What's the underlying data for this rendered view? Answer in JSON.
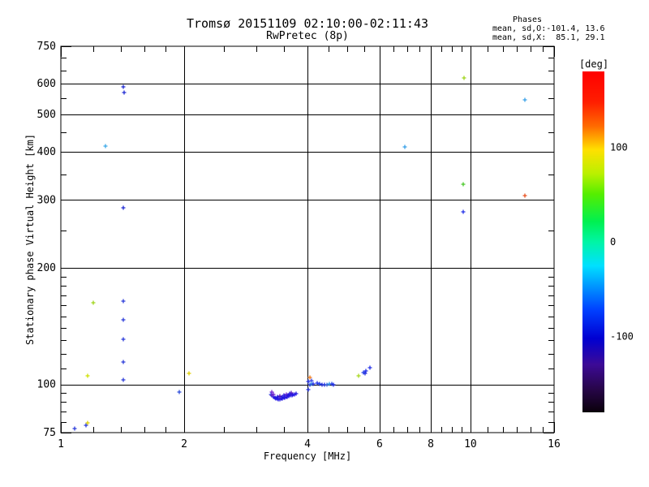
{
  "header": {
    "title_line1": "Tromsø 20151109 02:10:00-02:11:43",
    "title_line2": "RwPretec (8p)",
    "phases_heading": "Phases",
    "phases_line_o": "mean, sd,O:-101.4, 13.6",
    "phases_line_x": "mean, sd,X:  85.1, 29.1"
  },
  "chart_data": {
    "type": "scatter",
    "title": "Tromsø 20151109 02:10:00-02:11:43",
    "subtitle": "RwPretec (8p)",
    "xlabel": "Frequency [MHz]",
    "ylabel": "Stationary phase Virtual Height [km]",
    "x_scale": "log",
    "y_scale": "log",
    "xlim": [
      1,
      16
    ],
    "ylim": [
      75,
      750
    ],
    "x_major_ticks": [
      1,
      2,
      4,
      6,
      8,
      10,
      16
    ],
    "x_minor_ticks": [
      1.2,
      1.4,
      1.6,
      1.8,
      2.5,
      3,
      3.5,
      4.5,
      5,
      5.5,
      6.5,
      7,
      7.5,
      8.5,
      9,
      9.5,
      11,
      12,
      13,
      14,
      15
    ],
    "y_major_ticks": [
      750,
      600,
      500,
      400,
      300,
      200,
      100,
      75
    ],
    "y_minor_ticks": [
      700,
      650,
      550,
      450,
      350,
      250,
      190,
      180,
      170,
      160,
      150,
      140,
      130,
      120,
      110,
      95,
      90,
      85,
      80
    ],
    "x_gridlines": [
      2,
      4,
      6,
      8,
      10
    ],
    "y_gridlines": [
      600,
      500,
      400,
      300,
      200,
      100
    ],
    "grid": true,
    "marker": "plus",
    "points_format": [
      "frequency_MHz",
      "virtual_height_km",
      "phase_color"
    ],
    "points": [
      [
        1.08,
        77,
        "#2a3ad9"
      ],
      [
        1.15,
        78.5,
        "#2a3ad9"
      ],
      [
        1.165,
        79.5,
        "#e0cf00"
      ],
      [
        1.16,
        105,
        "#cfe000"
      ],
      [
        1.2,
        163,
        "#9fd41a"
      ],
      [
        1.285,
        413,
        "#3aa8e8"
      ],
      [
        1.42,
        588,
        "#1f2ad2"
      ],
      [
        1.425,
        569,
        "#1f2ad2"
      ],
      [
        1.42,
        287,
        "#1f2ad2"
      ],
      [
        1.42,
        164,
        "#2a3ad9"
      ],
      [
        1.42,
        147,
        "#2a3ad9"
      ],
      [
        1.42,
        131,
        "#2a3ad9"
      ],
      [
        1.42,
        114.5,
        "#2a3ad9"
      ],
      [
        1.42,
        102.5,
        "#2a3ad9"
      ],
      [
        1.95,
        95.5,
        "#2a4ad9"
      ],
      [
        2.06,
        107,
        "#e0cf00"
      ],
      [
        3.26,
        94.2,
        "#3a57e8"
      ],
      [
        3.28,
        93.6,
        "#5a1fc0"
      ],
      [
        3.305,
        93.0,
        "#2316dd"
      ],
      [
        3.33,
        92.5,
        "#2316dd"
      ],
      [
        3.35,
        92.1,
        "#2316e8"
      ],
      [
        3.375,
        91.8,
        "#2316dd"
      ],
      [
        3.4,
        91.6,
        "#2316e8"
      ],
      [
        3.425,
        91.5,
        "#2316dd"
      ],
      [
        3.45,
        91.7,
        "#2316e8"
      ],
      [
        3.475,
        91.9,
        "#2316dd"
      ],
      [
        3.5,
        92.2,
        "#3322ee"
      ],
      [
        3.525,
        92.4,
        "#2316dd"
      ],
      [
        3.55,
        92.7,
        "#2316e8"
      ],
      [
        3.575,
        92.9,
        "#2316dd"
      ],
      [
        3.6,
        93.2,
        "#2316e8"
      ],
      [
        3.63,
        93.5,
        "#2316dd"
      ],
      [
        3.66,
        93.7,
        "#2316e8"
      ],
      [
        3.69,
        94.0,
        "#2316dd"
      ],
      [
        3.72,
        94.3,
        "#2316e8"
      ],
      [
        3.755,
        94.6,
        "#2316dd"
      ],
      [
        3.31,
        94.3,
        "#6a1fd0"
      ],
      [
        3.43,
        93.3,
        "#5515b8"
      ],
      [
        3.56,
        94.2,
        "#6a22cc"
      ],
      [
        3.655,
        95.0,
        "#5a1fc0"
      ],
      [
        3.27,
        95.6,
        "#7a2ad2"
      ],
      [
        3.5,
        93.6,
        "#2e1fe0"
      ],
      [
        3.62,
        94.6,
        "#2e1fe0"
      ],
      [
        3.38,
        92.8,
        "#2316dd"
      ],
      [
        3.47,
        92.8,
        "#2316dd"
      ],
      [
        3.58,
        93.8,
        "#2316dd"
      ],
      [
        4.05,
        104.3,
        "#f07818"
      ],
      [
        4.02,
        101.5,
        "#2330e8"
      ],
      [
        4.05,
        99.6,
        "#2330dd"
      ],
      [
        4.01,
        96.8,
        "#2330dd"
      ],
      [
        4.085,
        102.0,
        "#3344e8"
      ],
      [
        4.1,
        100.4,
        "#37a0e8"
      ],
      [
        4.13,
        100.1,
        "#2330e8"
      ],
      [
        4.22,
        100.8,
        "#2330e8"
      ],
      [
        4.28,
        100.2,
        "#2340e8"
      ],
      [
        4.34,
        99.8,
        "#2330dd"
      ],
      [
        4.4,
        99.6,
        "#2330e8"
      ],
      [
        4.46,
        99.9,
        "#3a6ae8"
      ],
      [
        4.52,
        100.3,
        "#37a0e8"
      ],
      [
        4.58,
        100.4,
        "#2340e8"
      ],
      [
        4.63,
        100.0,
        "#2330e8"
      ],
      [
        5.33,
        105,
        "#a8d81e"
      ],
      [
        5.49,
        107.3,
        "#2340e8"
      ],
      [
        5.54,
        106.8,
        "#2330dd"
      ],
      [
        5.56,
        108.2,
        "#2330e8"
      ],
      [
        5.68,
        110.5,
        "#2330e8"
      ],
      [
        6.9,
        412,
        "#37a0e8"
      ],
      [
        9.66,
        622,
        "#9fd41a"
      ],
      [
        9.61,
        330,
        "#49c828"
      ],
      [
        9.61,
        280,
        "#2330e8"
      ],
      [
        13.55,
        545,
        "#37a0e8"
      ],
      [
        13.6,
        308,
        "#e8501e"
      ]
    ],
    "colorbar": {
      "label": "[deg]",
      "range_deg": [
        -180,
        180
      ],
      "ticks": [
        {
          "value": 100,
          "label": "100"
        },
        {
          "value": 0,
          "label": "0"
        },
        {
          "value": -100,
          "label": "-100"
        }
      ],
      "gradient_stops": [
        [
          0.0,
          "#ff0000"
        ],
        [
          0.09,
          "#ff1e00"
        ],
        [
          0.16,
          "#ff6a00"
        ],
        [
          0.23,
          "#ffe000"
        ],
        [
          0.3,
          "#baf000"
        ],
        [
          0.36,
          "#55ee00"
        ],
        [
          0.44,
          "#00f050"
        ],
        [
          0.5,
          "#00f5a5"
        ],
        [
          0.57,
          "#00e0ff"
        ],
        [
          0.63,
          "#0096ff"
        ],
        [
          0.7,
          "#0040ff"
        ],
        [
          0.783,
          "#0000d2"
        ],
        [
          0.86,
          "#3c0a96"
        ],
        [
          0.93,
          "#28064b"
        ],
        [
          1.0,
          "#0a000a"
        ]
      ]
    }
  }
}
